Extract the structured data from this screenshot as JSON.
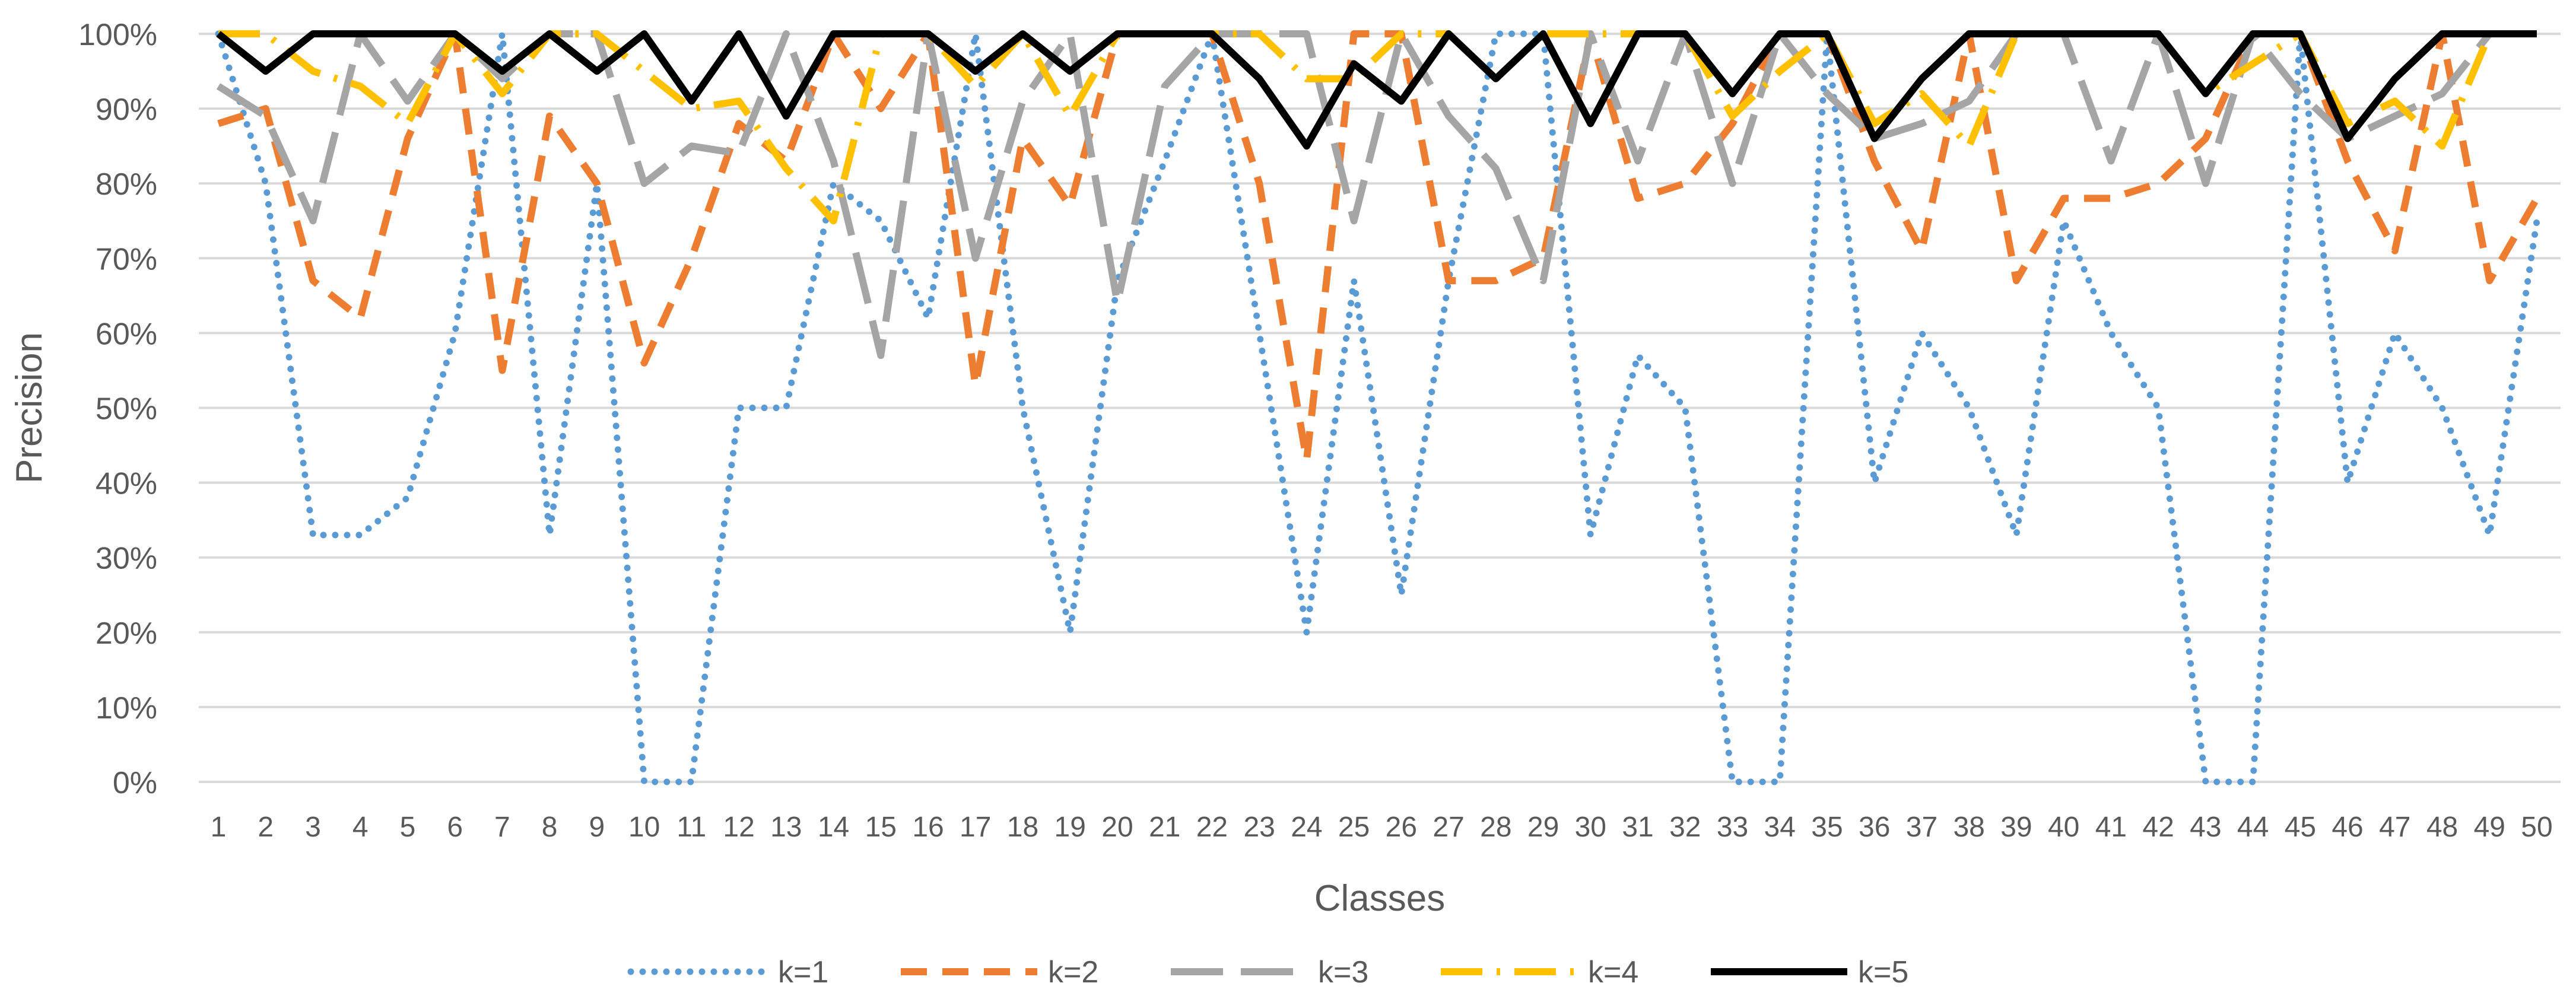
{
  "chart_data": {
    "type": "line",
    "title": "",
    "xlabel": "Classes",
    "ylabel": "Precision",
    "ylim": [
      0,
      100
    ],
    "y_ticks": [
      "0%",
      "10%",
      "20%",
      "30%",
      "40%",
      "50%",
      "60%",
      "70%",
      "80%",
      "90%",
      "100%"
    ],
    "grid": true,
    "legend_position": "bottom",
    "categories": [
      "1",
      "2",
      "3",
      "4",
      "5",
      "6",
      "7",
      "8",
      "9",
      "10",
      "11",
      "12",
      "13",
      "14",
      "15",
      "16",
      "17",
      "18",
      "19",
      "20",
      "21",
      "22",
      "23",
      "24",
      "25",
      "26",
      "27",
      "28",
      "29",
      "30",
      "31",
      "32",
      "33",
      "34",
      "35",
      "36",
      "37",
      "38",
      "39",
      "40",
      "41",
      "42",
      "43",
      "44",
      "45",
      "46",
      "47",
      "48",
      "49",
      "50"
    ],
    "series": [
      {
        "name": "k=1",
        "color": "#5B9BD5",
        "style": "dotted",
        "values": [
          100,
          80,
          33,
          33,
          38,
          60,
          100,
          33,
          80,
          0,
          0,
          50,
          50,
          80,
          75,
          62,
          100,
          50,
          20,
          67,
          83,
          100,
          60,
          20,
          67,
          25,
          67,
          100,
          100,
          33,
          57,
          50,
          0,
          0,
          100,
          40,
          60,
          50,
          33,
          75,
          60,
          50,
          0,
          0,
          100,
          40,
          60,
          50,
          33,
          75
        ]
      },
      {
        "name": "k=2",
        "color": "#ED7D31",
        "style": "dashed",
        "values": [
          88,
          90,
          67,
          62,
          86,
          100,
          55,
          89,
          80,
          56,
          70,
          88,
          83,
          100,
          90,
          100,
          53,
          86,
          77,
          100,
          100,
          100,
          80,
          43,
          100,
          100,
          67,
          67,
          70,
          100,
          78,
          80,
          88,
          100,
          100,
          83,
          71,
          100,
          67,
          78,
          78,
          80,
          86,
          100,
          100,
          83,
          71,
          100,
          67,
          78
        ]
      },
      {
        "name": "k=3",
        "color": "#A5A5A5",
        "style": "long-dash",
        "values": [
          93,
          89,
          75,
          100,
          91,
          100,
          94,
          100,
          100,
          80,
          85,
          84,
          100,
          83,
          57,
          100,
          70,
          91,
          100,
          64,
          93,
          100,
          100,
          100,
          75,
          100,
          89,
          82,
          67,
          100,
          83,
          100,
          80,
          100,
          92,
          86,
          88,
          91,
          100,
          100,
          83,
          100,
          80,
          100,
          92,
          86,
          89,
          92,
          100,
          100
        ]
      },
      {
        "name": "k=4",
        "color": "#FFC000",
        "style": "dash-dot",
        "values": [
          100,
          100,
          95,
          93,
          88,
          100,
          92,
          100,
          100,
          95,
          90,
          91,
          82,
          75,
          100,
          100,
          93,
          100,
          89,
          100,
          100,
          100,
          100,
          94,
          94,
          100,
          100,
          94,
          100,
          100,
          100,
          100,
          89,
          95,
          100,
          88,
          92,
          85,
          100,
          100,
          100,
          100,
          92,
          96,
          100,
          88,
          91,
          85,
          100,
          100
        ]
      },
      {
        "name": "k=5",
        "color": "#000000",
        "style": "solid",
        "values": [
          100,
          95,
          100,
          100,
          100,
          100,
          95,
          100,
          95,
          100,
          91,
          100,
          89,
          100,
          100,
          100,
          95,
          100,
          95,
          100,
          100,
          100,
          94,
          85,
          96,
          91,
          100,
          94,
          100,
          88,
          100,
          100,
          92,
          100,
          100,
          86,
          94,
          100,
          100,
          100,
          100,
          100,
          92,
          100,
          100,
          86,
          94,
          100,
          100,
          100
        ]
      }
    ]
  }
}
